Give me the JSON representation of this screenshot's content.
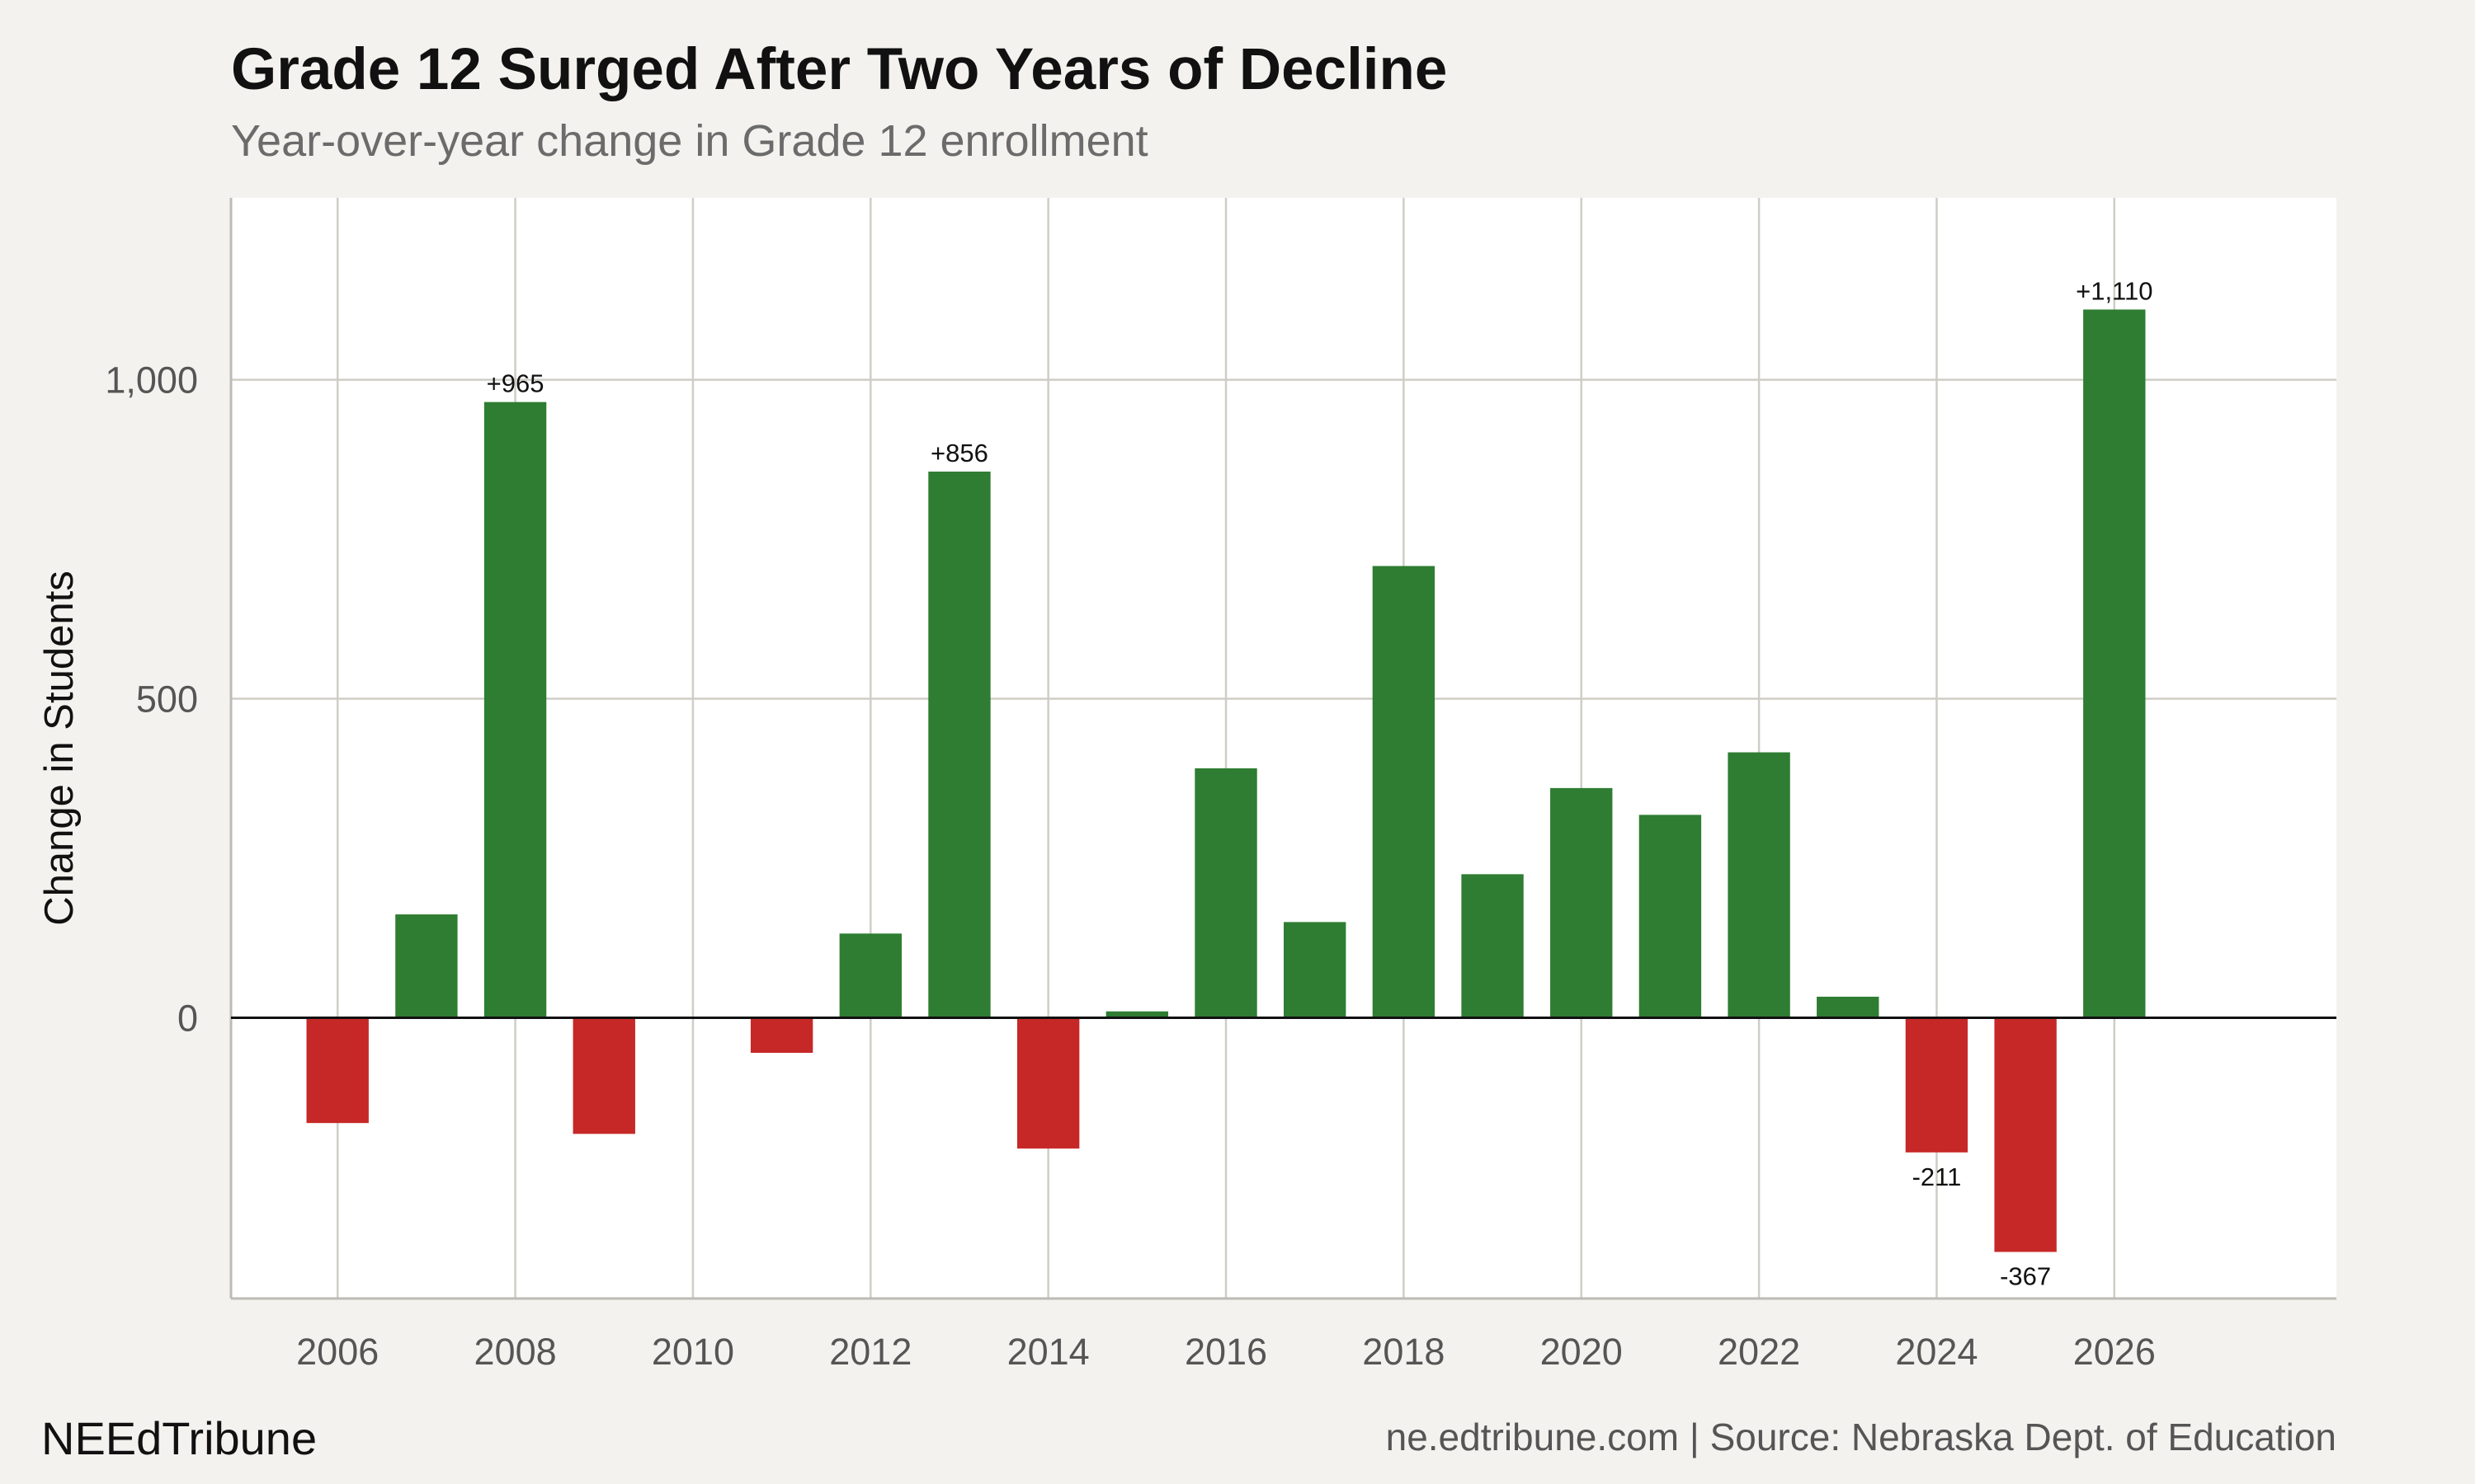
{
  "header": {
    "title": "Grade 12 Surged After Two Years of Decline",
    "subtitle": "Year-over-year change in Grade 12 enrollment"
  },
  "footer": {
    "brand": "NEEdTribune",
    "source": "ne.edtribune.com | Source: Nebraska Dept. of Education"
  },
  "colors": {
    "positive": "#2e7d32",
    "negative": "#c62828",
    "panel": "#ffffff",
    "background": "#f4f2ee",
    "grid": "#cfcdc6"
  },
  "chart_data": {
    "type": "bar",
    "x": [
      2006,
      2007,
      2008,
      2009,
      2010,
      2011,
      2012,
      2013,
      2014,
      2015,
      2016,
      2017,
      2018,
      2019,
      2020,
      2021,
      2022,
      2023,
      2024,
      2025,
      2026
    ],
    "values": [
      -165,
      162,
      965,
      -182,
      0,
      -55,
      132,
      856,
      -205,
      10,
      391,
      150,
      708,
      225,
      360,
      318,
      416,
      33,
      -211,
      -367,
      1110
    ],
    "data_labels": [
      {
        "x": 2008,
        "text": "+965"
      },
      {
        "x": 2013,
        "text": "+856"
      },
      {
        "x": 2024,
        "text": "-211"
      },
      {
        "x": 2025,
        "text": "-367"
      },
      {
        "x": 2026,
        "text": "+1,110"
      }
    ],
    "xlim": [
      2004.8,
      2028.5
    ],
    "ylim": [
      -440,
      1285
    ],
    "xticks": [
      2006,
      2008,
      2010,
      2012,
      2014,
      2016,
      2018,
      2020,
      2022,
      2024,
      2026
    ],
    "xtick_labels": [
      "2006",
      "2008",
      "2010",
      "2012",
      "2014",
      "2016",
      "2018",
      "2020",
      "2022",
      "2024",
      "2026"
    ],
    "yticks": [
      0,
      500,
      1000
    ],
    "ytick_labels": [
      "0",
      "500",
      "1,000"
    ],
    "xlabel": "",
    "ylabel": "Change in Students",
    "grid": true,
    "legend": "none"
  }
}
